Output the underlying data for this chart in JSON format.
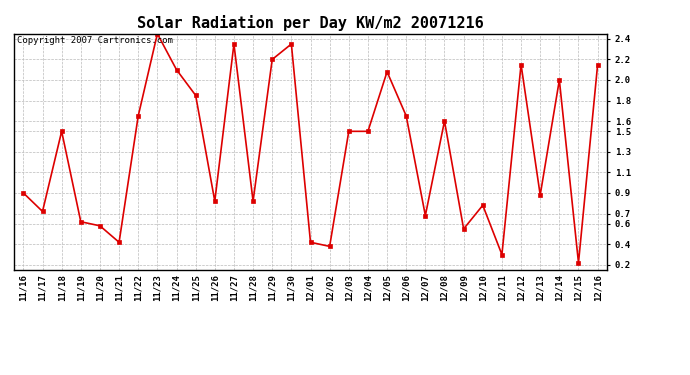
{
  "title": "Solar Radiation per Day KW/m2 20071216",
  "copyright": "Copyright 2007 Cartronics.com",
  "labels": [
    "11/16",
    "11/17",
    "11/18",
    "11/19",
    "11/20",
    "11/21",
    "11/22",
    "11/23",
    "11/24",
    "11/25",
    "11/26",
    "11/27",
    "11/28",
    "11/29",
    "11/30",
    "12/01",
    "12/02",
    "12/03",
    "12/04",
    "12/05",
    "12/06",
    "12/07",
    "12/08",
    "12/09",
    "12/10",
    "12/11",
    "12/12",
    "12/13",
    "12/14",
    "12/15",
    "12/16"
  ],
  "values": [
    0.9,
    0.72,
    1.5,
    0.62,
    0.58,
    0.42,
    1.65,
    2.45,
    2.1,
    1.85,
    0.82,
    2.35,
    0.82,
    2.2,
    2.35,
    0.42,
    0.38,
    1.5,
    1.5,
    2.08,
    1.65,
    0.68,
    1.6,
    0.55,
    0.78,
    0.3,
    2.15,
    0.88,
    2.0,
    0.22,
    2.15
  ],
  "line_color": "#dd0000",
  "marker_color": "#dd0000",
  "bg_color": "#ffffff",
  "plot_bg_color": "#ffffff",
  "grid_color": "#bbbbbb",
  "ylim_min": 0.15,
  "ylim_max": 2.45,
  "ytick_vals": [
    0.2,
    0.4,
    0.6,
    0.7,
    0.9,
    1.1,
    1.3,
    1.5,
    1.6,
    1.8,
    2.0,
    2.2,
    2.4
  ],
  "title_fontsize": 11,
  "copyright_fontsize": 6.5,
  "tick_fontsize": 6.5,
  "linewidth": 1.2,
  "markersize": 2.5
}
